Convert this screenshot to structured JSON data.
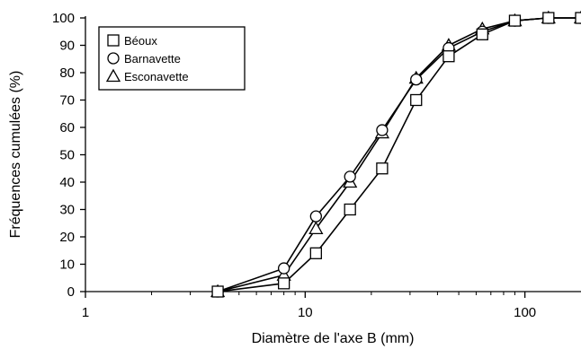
{
  "chart_data": {
    "type": "line",
    "xscale": "log",
    "xlim": [
      1,
      180
    ],
    "ylim": [
      0,
      100
    ],
    "xticks": [
      1,
      10,
      100
    ],
    "xtick_labels": [
      "1",
      "10",
      "100"
    ],
    "yticks": [
      0,
      10,
      20,
      30,
      40,
      50,
      60,
      70,
      80,
      90,
      100
    ],
    "ytick_labels": [
      "0",
      "10",
      "20",
      "30",
      "40",
      "50",
      "60",
      "70",
      "80",
      "90",
      "100"
    ],
    "xlabel": "Diamètre de l'axe B (mm)",
    "ylabel": "Fréquences cumulées (%)",
    "grid": false,
    "legend_position": "top-left",
    "series": [
      {
        "name": "Béoux",
        "marker": "square",
        "x": [
          4,
          8,
          11.2,
          16,
          22.4,
          32,
          45,
          64,
          90,
          128,
          180
        ],
        "y": [
          0,
          3,
          14,
          30,
          45,
          70,
          86,
          94,
          99,
          100,
          100
        ]
      },
      {
        "name": "Barnavette",
        "marker": "circle",
        "x": [
          4,
          8,
          11.2,
          16,
          22.4,
          32,
          45,
          64,
          90,
          128,
          180
        ],
        "y": [
          0,
          8.5,
          27.5,
          42,
          59,
          77.5,
          89,
          95,
          99,
          100,
          100
        ]
      },
      {
        "name": "Esconavette",
        "marker": "triangle",
        "x": [
          4,
          8,
          11.2,
          16,
          22.4,
          32,
          45,
          64,
          90,
          128,
          180
        ],
        "y": [
          0,
          6,
          23,
          40,
          58,
          78,
          90,
          96,
          99,
          100,
          100
        ]
      }
    ]
  }
}
